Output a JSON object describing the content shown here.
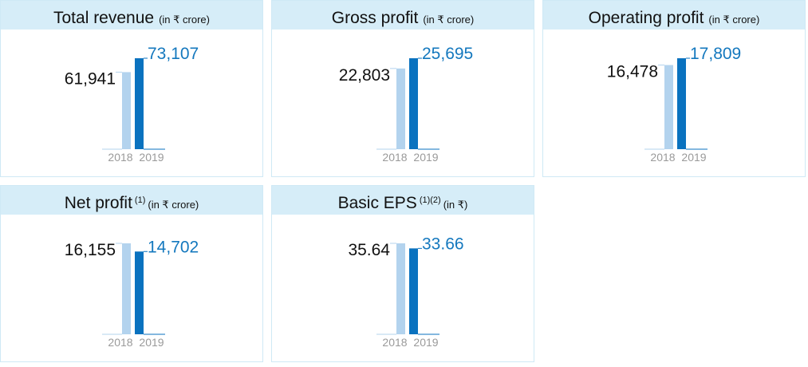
{
  "colors": {
    "bar_prev": "#b3d3ee",
    "bar_curr": "#0a72bf",
    "label_curr": "#1478be",
    "label_prev": "#111111",
    "header_bg": "#d6edf8"
  },
  "chart_data": [
    {
      "type": "bar",
      "title": "Total revenue",
      "title_sup": "",
      "unit": "(in ₹ crore)",
      "categories": [
        "2018",
        "2019"
      ],
      "values": [
        61941,
        73107
      ],
      "labels": [
        "61,941",
        "73,107"
      ]
    },
    {
      "type": "bar",
      "title": "Gross profit",
      "title_sup": "",
      "unit": "(in ₹ crore)",
      "categories": [
        "2018",
        "2019"
      ],
      "values": [
        22803,
        25695
      ],
      "labels": [
        "22,803",
        "25,695"
      ]
    },
    {
      "type": "bar",
      "title": "Operating profit",
      "title_sup": "",
      "unit": "(in ₹ crore)",
      "categories": [
        "2018",
        "2019"
      ],
      "values": [
        16478,
        17809
      ],
      "labels": [
        "16,478",
        "17,809"
      ]
    },
    {
      "type": "bar",
      "title": "Net profit",
      "title_sup": "(1)",
      "unit": "(in ₹ crore)",
      "categories": [
        "2018",
        "2019"
      ],
      "values": [
        16155,
        14702
      ],
      "labels": [
        "16,155",
        "14,702"
      ]
    },
    {
      "type": "bar",
      "title": "Basic EPS",
      "title_sup": "(1)(2)",
      "unit": "(in ₹)",
      "categories": [
        "2018",
        "2019"
      ],
      "values": [
        35.64,
        33.66
      ],
      "labels": [
        "35.64",
        "33.66"
      ]
    }
  ]
}
